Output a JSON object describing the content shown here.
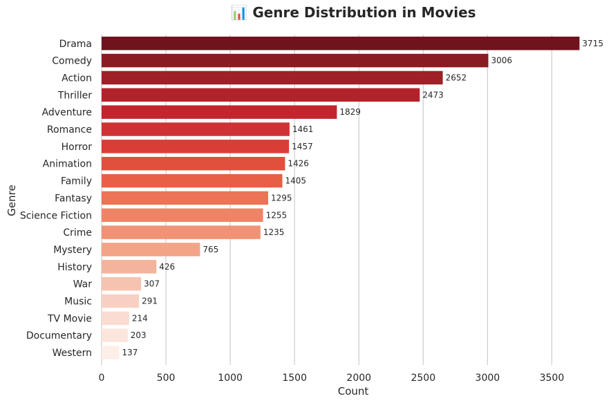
{
  "chart_data": {
    "type": "bar",
    "orientation": "horizontal",
    "title": "📊 Genre Distribution in Movies",
    "xlabel": "Count",
    "ylabel": "Genre",
    "xlim": [
      0,
      3800
    ],
    "xticks": [
      0,
      500,
      1000,
      1500,
      2000,
      2500,
      3000,
      3500
    ],
    "grid": "vertical",
    "categories": [
      "Drama",
      "Comedy",
      "Action",
      "Thriller",
      "Adventure",
      "Romance",
      "Horror",
      "Animation",
      "Family",
      "Fantasy",
      "Science Fiction",
      "Crime",
      "Mystery",
      "History",
      "War",
      "Music",
      "TV Movie",
      "Documentary",
      "Western"
    ],
    "values": [
      3715,
      3006,
      2652,
      2473,
      1829,
      1461,
      1457,
      1426,
      1405,
      1295,
      1255,
      1235,
      765,
      426,
      307,
      291,
      214,
      203,
      137
    ],
    "colors": [
      "#6f131d",
      "#8a1b22",
      "#9f2026",
      "#b2222b",
      "#c2262d",
      "#cf3234",
      "#d93d36",
      "#e1503d",
      "#e95f46",
      "#ec7355",
      "#ee8466",
      "#f09274",
      "#f3a486",
      "#f4b39b",
      "#f6c3b0",
      "#f8d0c1",
      "#fadcd2",
      "#fce5dd",
      "#fdeee8"
    ]
  }
}
